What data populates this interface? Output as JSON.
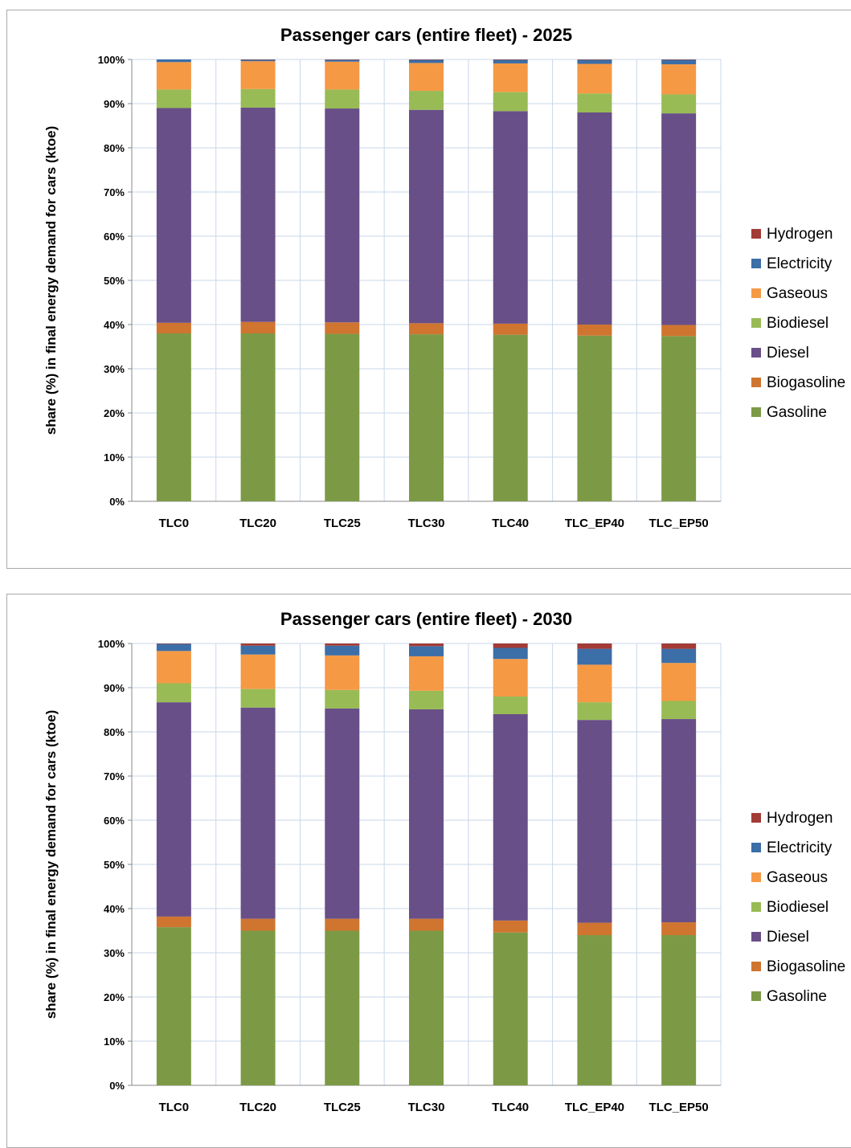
{
  "colors": {
    "Gasoline": "#7c9a45",
    "Biogasoline": "#cf7530",
    "Diesel": "#684f88",
    "Biodiesel": "#98bb55",
    "Gaseous": "#f59945",
    "Electricity": "#3c6ea7",
    "Hydrogen": "#a33b37"
  },
  "chart_data": [
    {
      "type": "bar",
      "stacked": true,
      "title": "Passenger cars (entire fleet) - 2025",
      "ylabel": "share (%) in final energy demand for cars (ktoe)",
      "xlabel": "",
      "ylim": [
        0,
        100
      ],
      "yticks": [
        "0%",
        "10%",
        "20%",
        "30%",
        "40%",
        "50%",
        "60%",
        "70%",
        "80%",
        "90%",
        "100%"
      ],
      "legend_position": "right",
      "legend_order": [
        "Hydrogen",
        "Electricity",
        "Gaseous",
        "Biodiesel",
        "Diesel",
        "Biogasoline",
        "Gasoline"
      ],
      "grid": true,
      "categories": [
        "TLC0",
        "TLC20",
        "TLC25",
        "TLC30",
        "TLC40",
        "TLC_EP40",
        "TLC_EP50"
      ],
      "series": [
        {
          "name": "Gasoline",
          "values": [
            38.0,
            38.0,
            37.9,
            37.8,
            37.7,
            37.5,
            37.4
          ]
        },
        {
          "name": "Biogasoline",
          "values": [
            2.4,
            2.6,
            2.6,
            2.5,
            2.5,
            2.5,
            2.5
          ]
        },
        {
          "name": "Diesel",
          "values": [
            48.6,
            48.5,
            48.4,
            48.3,
            48.1,
            48.0,
            47.9
          ]
        },
        {
          "name": "Biodiesel",
          "values": [
            4.2,
            4.2,
            4.3,
            4.3,
            4.3,
            4.3,
            4.3
          ]
        },
        {
          "name": "Gaseous",
          "values": [
            6.2,
            6.3,
            6.3,
            6.3,
            6.5,
            6.7,
            6.8
          ]
        },
        {
          "name": "Electricity",
          "values": [
            0.6,
            0.3,
            0.4,
            0.7,
            0.8,
            0.9,
            1.0
          ]
        },
        {
          "name": "Hydrogen",
          "values": [
            0.0,
            0.1,
            0.1,
            0.1,
            0.1,
            0.1,
            0.1
          ]
        }
      ]
    },
    {
      "type": "bar",
      "stacked": true,
      "title": "Passenger cars (entire fleet) - 2030",
      "ylabel": "share (%) in final energy demand for cars (ktoe)",
      "xlabel": "",
      "ylim": [
        0,
        100
      ],
      "yticks": [
        "0%",
        "10%",
        "20%",
        "30%",
        "40%",
        "50%",
        "60%",
        "70%",
        "80%",
        "90%",
        "100%"
      ],
      "legend_position": "right",
      "legend_order": [
        "Hydrogen",
        "Electricity",
        "Gaseous",
        "Biodiesel",
        "Diesel",
        "Biogasoline",
        "Gasoline"
      ],
      "grid": true,
      "categories": [
        "TLC0",
        "TLC20",
        "TLC25",
        "TLC30",
        "TLC40",
        "TLC_EP40",
        "TLC_EP50"
      ],
      "series": [
        {
          "name": "Gasoline",
          "values": [
            35.8,
            35.0,
            35.0,
            35.0,
            34.6,
            34.0,
            34.0
          ]
        },
        {
          "name": "Biogasoline",
          "values": [
            2.4,
            2.7,
            2.7,
            2.7,
            2.7,
            2.8,
            2.9
          ]
        },
        {
          "name": "Diesel",
          "values": [
            48.5,
            47.8,
            47.6,
            47.4,
            46.7,
            45.9,
            46.0
          ]
        },
        {
          "name": "Biodiesel",
          "values": [
            4.3,
            4.2,
            4.2,
            4.2,
            4.0,
            4.0,
            4.1
          ]
        },
        {
          "name": "Gaseous",
          "values": [
            7.3,
            7.8,
            7.8,
            7.8,
            8.5,
            8.5,
            8.6
          ]
        },
        {
          "name": "Electricity",
          "values": [
            1.6,
            2.0,
            2.2,
            2.3,
            2.5,
            3.6,
            3.2
          ]
        },
        {
          "name": "Hydrogen",
          "values": [
            0.1,
            0.5,
            0.5,
            0.6,
            1.0,
            1.2,
            1.2
          ]
        }
      ]
    }
  ]
}
